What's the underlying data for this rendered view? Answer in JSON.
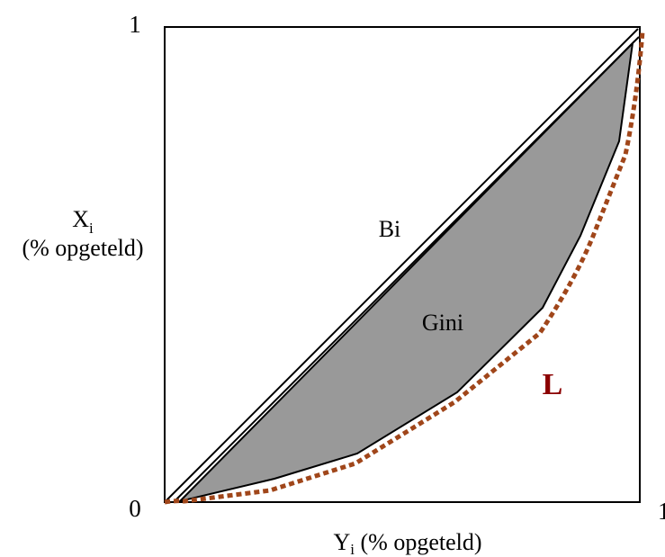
{
  "y_axis": {
    "title": "X",
    "title_subscript": "i",
    "title_suffix": "(% opgeteld)",
    "tick_top": "1",
    "tick_bottom": "0"
  },
  "x_axis": {
    "title": "Y",
    "title_subscript": "i",
    "title_suffix": " (% opgeteld)",
    "tick_right": "1"
  },
  "labels": {
    "diagonal": "Bi",
    "shaded_area": "Gini",
    "curve": "L"
  },
  "colors": {
    "frame": "#000000",
    "diagonal": "#000000",
    "shaded_area_fill": "#999999",
    "curve_L": "#a0461a",
    "curve_label": "#8b0000"
  }
}
